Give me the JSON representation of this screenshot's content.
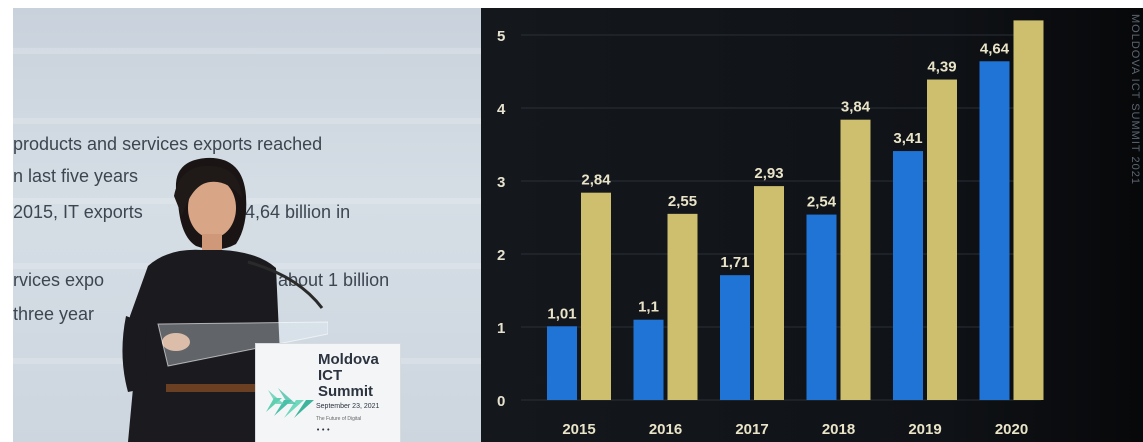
{
  "slide_text": {
    "line1": "products and services exports reached",
    "line2": "n last five years",
    "line3": "2015, IT exports",
    "line3b": "4,64 billion in",
    "line4": "rvices expo",
    "line4b": "t about 1 billion",
    "line5": "three year"
  },
  "side_caption": "MOLDOVA ICT SUMMIT 2021",
  "podium": {
    "title_line1": "Moldova",
    "title_line2": "ICT Summit",
    "date": "September 23, 2021",
    "tagline": "The Future of Digital",
    "dots": "•••"
  },
  "colors": {
    "blue": "#1f74d6",
    "gold": "#cdbf6e",
    "screen": "#111418"
  },
  "chart_data": {
    "type": "bar",
    "categories": [
      "2015",
      "2016",
      "2017",
      "2018",
      "2019",
      "2020"
    ],
    "series": [
      {
        "values": [
          1.01,
          1.1,
          1.71,
          2.54,
          3.41,
          4.64
        ],
        "labels": [
          "1,01",
          "1,1",
          "1,71",
          "2,54",
          "3,41",
          "4,64"
        ]
      },
      {
        "values": [
          2.84,
          2.55,
          2.93,
          3.84,
          4.39,
          5.2
        ],
        "labels": [
          "2,84",
          "2,55",
          "2,93",
          "3,84",
          "4,39",
          ""
        ]
      }
    ],
    "yticks": [
      "0",
      "1",
      "2",
      "3",
      "4",
      "5"
    ],
    "ylim": [
      0,
      5
    ],
    "grid": true
  }
}
